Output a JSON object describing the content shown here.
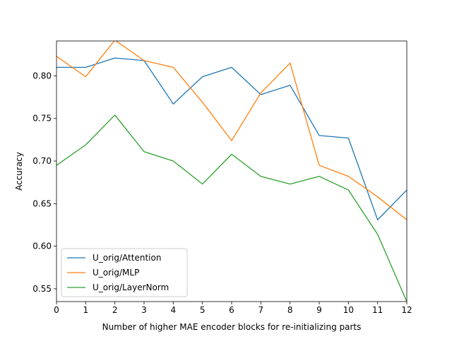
{
  "chart_data": {
    "type": "line",
    "title": "",
    "xlabel": "Number of higher MAE encoder blocks for re-initializing parts",
    "ylabel": "Accuracy",
    "xlim": [
      0,
      12
    ],
    "ylim": [
      0.535,
      0.841
    ],
    "x": [
      0,
      1,
      2,
      3,
      4,
      5,
      6,
      7,
      8,
      9,
      10,
      11,
      12
    ],
    "x_ticks": [
      "0",
      "1",
      "2",
      "3",
      "4",
      "5",
      "6",
      "7",
      "8",
      "9",
      "10",
      "11",
      "12"
    ],
    "y_ticks": [
      {
        "value": 0.55,
        "label": "0.55"
      },
      {
        "value": 0.6,
        "label": "0.60"
      },
      {
        "value": 0.65,
        "label": "0.65"
      },
      {
        "value": 0.7,
        "label": "0.70"
      },
      {
        "value": 0.75,
        "label": "0.75"
      },
      {
        "value": 0.8,
        "label": "0.80"
      }
    ],
    "grid": false,
    "legend_position": "lower-left",
    "series": [
      {
        "name": "U_orig/Attention",
        "color": "#1f77b4",
        "values": [
          0.81,
          0.81,
          0.821,
          0.818,
          0.767,
          0.799,
          0.81,
          0.778,
          0.789,
          0.73,
          0.727,
          0.631,
          0.666
        ]
      },
      {
        "name": "U_orig/MLP",
        "color": "#ff7f0e",
        "values": [
          0.823,
          0.799,
          0.842,
          0.818,
          0.81,
          0.769,
          0.724,
          0.78,
          0.815,
          0.695,
          0.682,
          0.658,
          0.631
        ]
      },
      {
        "name": "U_orig/LayerNorm",
        "color": "#2ca02c",
        "values": [
          0.695,
          0.719,
          0.754,
          0.711,
          0.7,
          0.673,
          0.708,
          0.682,
          0.673,
          0.682,
          0.666,
          0.614,
          0.535
        ]
      }
    ]
  }
}
